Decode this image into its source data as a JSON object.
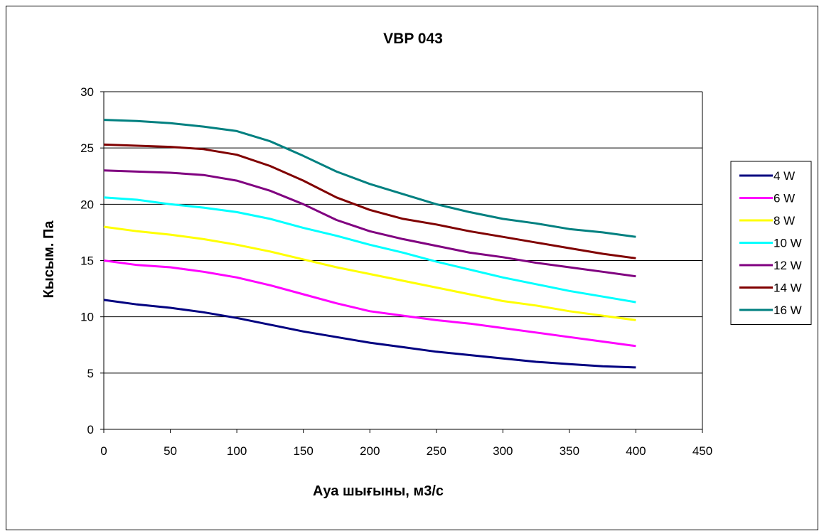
{
  "chart_data": {
    "type": "line",
    "title": "VBP 043",
    "xlabel": "Ауа шығыны, м3/с",
    "ylabel": "Кысым. Па",
    "xlim": [
      0,
      450
    ],
    "ylim": [
      0,
      30
    ],
    "xticks": [
      0,
      50,
      100,
      150,
      200,
      250,
      300,
      350,
      400,
      450
    ],
    "yticks": [
      0,
      5,
      10,
      15,
      20,
      25,
      30
    ],
    "grid": "horizontal",
    "legend_position": "right",
    "series": [
      {
        "name": "4 W",
        "color": "#000080",
        "x": [
          0,
          25,
          50,
          75,
          100,
          125,
          150,
          175,
          200,
          225,
          250,
          275,
          300,
          325,
          350,
          375,
          400
        ],
        "y": [
          11.5,
          11.1,
          10.8,
          10.4,
          9.9,
          9.3,
          8.7,
          8.2,
          7.7,
          7.3,
          6.9,
          6.6,
          6.3,
          6.0,
          5.8,
          5.6,
          5.5
        ]
      },
      {
        "name": "6 W",
        "color": "#FF00FF",
        "x": [
          0,
          25,
          50,
          75,
          100,
          125,
          150,
          175,
          200,
          225,
          250,
          275,
          300,
          325,
          350,
          375,
          400
        ],
        "y": [
          15.0,
          14.6,
          14.4,
          14.0,
          13.5,
          12.8,
          12.0,
          11.2,
          10.5,
          10.1,
          9.7,
          9.4,
          9.0,
          8.6,
          8.2,
          7.8,
          7.4
        ]
      },
      {
        "name": "8 W",
        "color": "#FFFF00",
        "x": [
          0,
          25,
          50,
          75,
          100,
          125,
          150,
          175,
          200,
          225,
          250,
          275,
          300,
          325,
          350,
          375,
          400
        ],
        "y": [
          18.0,
          17.6,
          17.3,
          16.9,
          16.4,
          15.8,
          15.1,
          14.4,
          13.8,
          13.2,
          12.6,
          12.0,
          11.4,
          11.0,
          10.5,
          10.1,
          9.7
        ]
      },
      {
        "name": "10 W",
        "color": "#00FFFF",
        "x": [
          0,
          25,
          50,
          75,
          100,
          125,
          150,
          175,
          200,
          225,
          250,
          275,
          300,
          325,
          350,
          375,
          400
        ],
        "y": [
          20.6,
          20.4,
          20.0,
          19.7,
          19.3,
          18.7,
          17.9,
          17.2,
          16.4,
          15.7,
          14.9,
          14.2,
          13.5,
          12.9,
          12.3,
          11.8,
          11.3
        ]
      },
      {
        "name": "12 W",
        "color": "#800080",
        "x": [
          0,
          25,
          50,
          75,
          100,
          125,
          150,
          175,
          200,
          225,
          250,
          275,
          300,
          325,
          350,
          375,
          400
        ],
        "y": [
          23.0,
          22.9,
          22.8,
          22.6,
          22.1,
          21.2,
          20.0,
          18.6,
          17.6,
          16.9,
          16.3,
          15.7,
          15.3,
          14.8,
          14.4,
          14.0,
          13.6
        ]
      },
      {
        "name": "14 W",
        "color": "#800000",
        "x": [
          0,
          25,
          50,
          75,
          100,
          125,
          150,
          175,
          200,
          225,
          250,
          275,
          300,
          325,
          350,
          375,
          400
        ],
        "y": [
          25.3,
          25.2,
          25.1,
          24.9,
          24.4,
          23.4,
          22.1,
          20.6,
          19.5,
          18.7,
          18.2,
          17.6,
          17.1,
          16.6,
          16.1,
          15.6,
          15.2
        ]
      },
      {
        "name": "16 W",
        "color": "#008080",
        "x": [
          0,
          25,
          50,
          75,
          100,
          125,
          150,
          175,
          200,
          225,
          250,
          275,
          300,
          325,
          350,
          375,
          400
        ],
        "y": [
          27.5,
          27.4,
          27.2,
          26.9,
          26.5,
          25.6,
          24.3,
          22.9,
          21.8,
          20.9,
          20.0,
          19.3,
          18.7,
          18.3,
          17.8,
          17.5,
          17.1
        ]
      }
    ]
  }
}
